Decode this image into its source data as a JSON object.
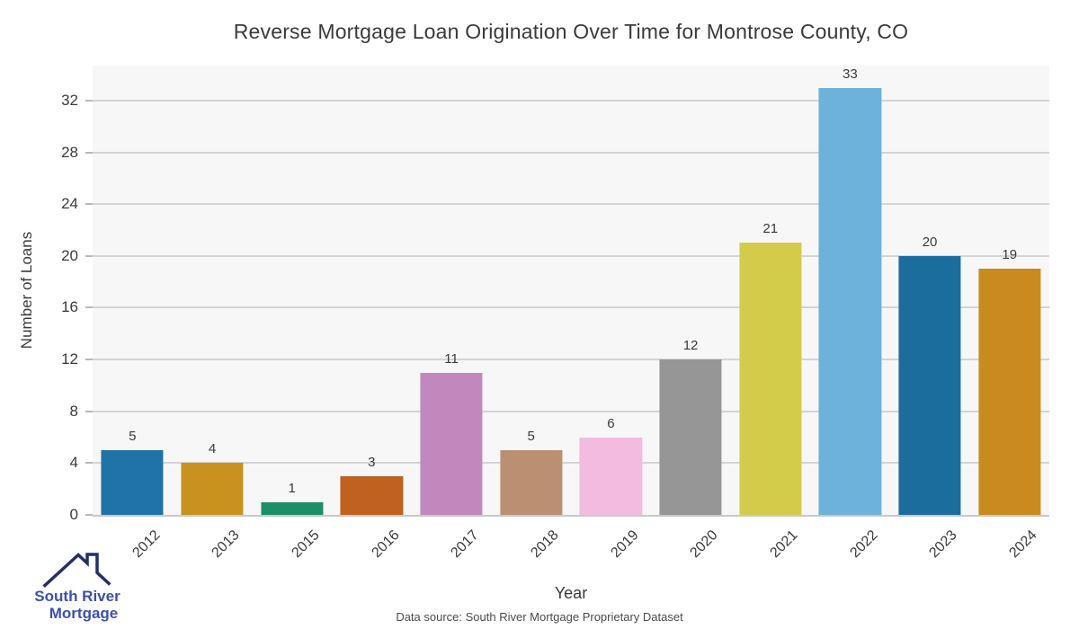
{
  "chart_data": {
    "type": "bar",
    "title": "Reverse Mortgage Loan Origination Over Time for Montrose County, CO",
    "xlabel": "Year",
    "ylabel": "Number of Loans",
    "categories": [
      "2012",
      "2013",
      "2015",
      "2016",
      "2017",
      "2018",
      "2019",
      "2020",
      "2021",
      "2022",
      "2023",
      "2024"
    ],
    "values": [
      5,
      4,
      1,
      3,
      11,
      5,
      6,
      12,
      21,
      33,
      20,
      19
    ],
    "bar_colors": [
      "#1f73a6",
      "#c9921e",
      "#1b9068",
      "#c06120",
      "#c287bd",
      "#bb8f72",
      "#f3bbdf",
      "#969696",
      "#d3cc4b",
      "#6cb2da",
      "#1b6d9e",
      "#c98a1f"
    ],
    "yticks": [
      0,
      4,
      8,
      12,
      16,
      20,
      24,
      28,
      32
    ],
    "ylim": [
      0,
      34.7
    ],
    "grid": "horizontal-major-only",
    "legend": "none",
    "plot_background": "#f7f7f7",
    "gridline_color": "#d4d4d4"
  },
  "branding": {
    "logo_line1": "South River",
    "logo_line2": "Mortgage",
    "logo_icon": "house-roof-icon",
    "logo_text_color": "#3c50ae",
    "logo_icon_color": "#243066"
  },
  "footer": {
    "source_text": "Data source: South River Mortgage Proprietary Dataset"
  }
}
